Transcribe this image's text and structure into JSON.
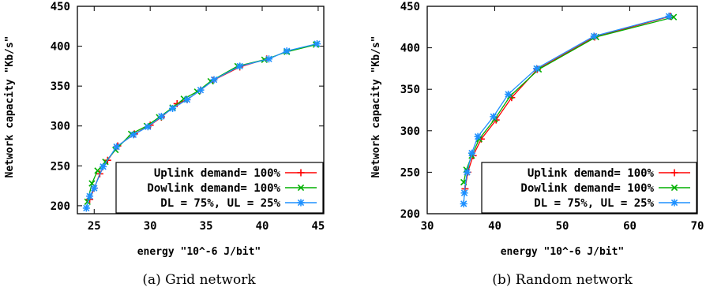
{
  "chart_data": [
    {
      "type": "line",
      "caption": "(a) Grid network",
      "xlabel": "energy \"10^-6 J/bit\"",
      "ylabel": "Network capacity \"Kb/s\"",
      "xlim": [
        23.5,
        45.5
      ],
      "ylim": [
        190,
        450
      ],
      "xticks": [
        25,
        30,
        35,
        40,
        45
      ],
      "yticks": [
        200,
        250,
        300,
        350,
        400,
        450
      ],
      "grid": false,
      "legend_position": "bottom-right",
      "series": [
        {
          "name": "Uplink demand= 100%",
          "color": "#ff0000",
          "marker": "plus",
          "x": [
            24.6,
            25.0,
            25.5,
            26.2,
            27.1,
            28.6,
            30.0,
            31.0,
            32.4,
            33.3,
            34.5,
            35.6,
            38.0,
            40.4
          ],
          "y": [
            208,
            222,
            240,
            257,
            275,
            290,
            301,
            311,
            328,
            333,
            345,
            357,
            374,
            384
          ]
        },
        {
          "name": "Dowlink demand= 100%",
          "color": "#00b000",
          "marker": "x",
          "x": [
            24.4,
            24.8,
            25.3,
            26.0,
            26.9,
            28.3,
            29.7,
            30.8,
            32.0,
            33.0,
            34.2,
            35.4,
            37.8,
            40.2,
            42.2,
            44.8
          ],
          "y": [
            205,
            228,
            244,
            255,
            270,
            290,
            300,
            311,
            323,
            334,
            343,
            356,
            375,
            383,
            393,
            402
          ]
        },
        {
          "name": "DL = 75%, UL = 25%",
          "color": "#1e90ff",
          "marker": "star",
          "x": [
            24.3,
            24.6,
            25.0,
            25.8,
            27.0,
            28.5,
            29.8,
            31.0,
            32.0,
            33.3,
            34.5,
            35.7,
            38.0,
            40.6,
            42.2,
            44.9
          ],
          "y": [
            197,
            212,
            222,
            249,
            274,
            289,
            299,
            312,
            322,
            333,
            345,
            358,
            375,
            384,
            394,
            403
          ]
        }
      ]
    },
    {
      "type": "line",
      "caption": "(b) Random network",
      "xlabel": "energy \"10^-6 J/bit\"",
      "ylabel": "Network capacity \"Kb/s\"",
      "xlim": [
        30,
        70
      ],
      "ylim": [
        200,
        450
      ],
      "xticks": [
        30,
        40,
        50,
        60,
        70
      ],
      "yticks": [
        200,
        250,
        300,
        350,
        400,
        450
      ],
      "grid": false,
      "legend_position": "bottom-right",
      "series": [
        {
          "name": "Uplink demand= 100%",
          "color": "#ff0000",
          "marker": "plus",
          "x": [
            35.6,
            36.0,
            36.8,
            38.0,
            40.2,
            42.5,
            46.3,
            54.8,
            66.0
          ],
          "y": [
            230,
            250,
            270,
            290,
            313,
            340,
            374,
            413,
            438
          ]
        },
        {
          "name": "Dowlink demand= 100%",
          "color": "#00b000",
          "marker": "x",
          "x": [
            35.4,
            35.8,
            36.6,
            37.7,
            40.0,
            42.3,
            46.5,
            55.0,
            66.5
          ],
          "y": [
            238,
            253,
            270,
            290,
            314,
            342,
            374,
            413,
            437
          ]
        },
        {
          "name": "DL = 75%, UL = 25%",
          "color": "#1e90ff",
          "marker": "star",
          "x": [
            35.4,
            35.5,
            35.9,
            36.6,
            37.5,
            39.8,
            42.0,
            46.2,
            54.7,
            65.8
          ],
          "y": [
            212,
            225,
            250,
            273,
            293,
            317,
            344,
            375,
            414,
            438
          ]
        }
      ]
    }
  ]
}
